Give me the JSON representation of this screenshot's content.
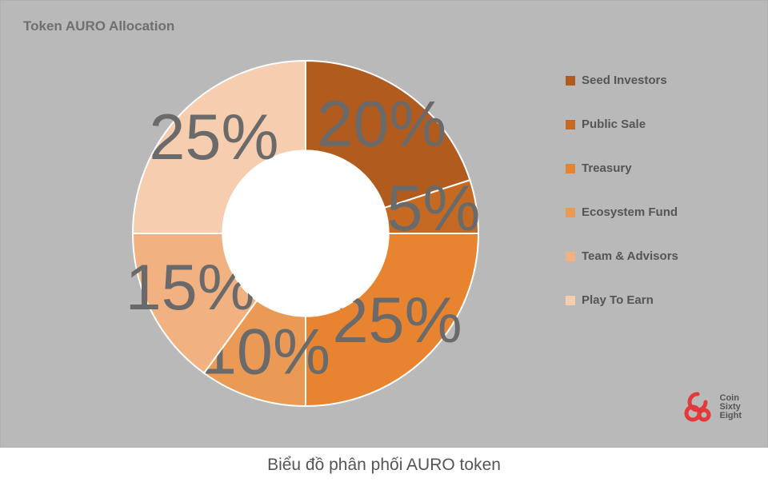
{
  "title": "Token AURO Allocation",
  "caption": "Biểu đồ phân phối AURO token",
  "chart": {
    "type": "donut",
    "inner_radius_ratio": 0.48,
    "start_angle_deg": -90,
    "direction": "clockwise",
    "background_color": "#b9b9b9",
    "inner_hole_color": "#ffffff",
    "stroke_color": "#ffffff",
    "stroke_width": 2,
    "label_fontsize": 18,
    "label_radius_ratio": 0.75,
    "slices": [
      {
        "name": "Seed Investors",
        "value": 20,
        "label": "20%",
        "color": "#b15b1f",
        "label_color": "#6a6a6a"
      },
      {
        "name": "Public Sale",
        "value": 5,
        "label": "5%",
        "color": "#c66a23",
        "label_color": "#6a6a6a"
      },
      {
        "name": "Treasury",
        "value": 25,
        "label": "25%",
        "color": "#e88330",
        "label_color": "#6a6a6a"
      },
      {
        "name": "Ecosystem Fund",
        "value": 10,
        "label": "10%",
        "color": "#eb9a55",
        "label_color": "#6a6a6a"
      },
      {
        "name": "Team & Advisors",
        "value": 15,
        "label": "15%",
        "color": "#f1b181",
        "label_color": "#6a6a6a"
      },
      {
        "name": "Play To Earn",
        "value": 25,
        "label": "25%",
        "color": "#f6cdaf",
        "label_color": "#6a6a6a"
      }
    ]
  },
  "legend": {
    "items": [
      {
        "label": "Seed Investors",
        "color": "#b15b1f"
      },
      {
        "label": "Public Sale",
        "color": "#c66a23"
      },
      {
        "label": "Treasury",
        "color": "#e88330"
      },
      {
        "label": "Ecosystem Fund",
        "color": "#eb9a55"
      },
      {
        "label": "Team & Advisors",
        "color": "#f1b181"
      },
      {
        "label": "Play To Earn",
        "color": "#f6cdaf"
      }
    ],
    "text_color": "#555555",
    "fontsize": 15
  },
  "brand": {
    "icon_color": "#e23a3a",
    "lines": [
      "Coin",
      "Sixty",
      "Eight"
    ]
  }
}
